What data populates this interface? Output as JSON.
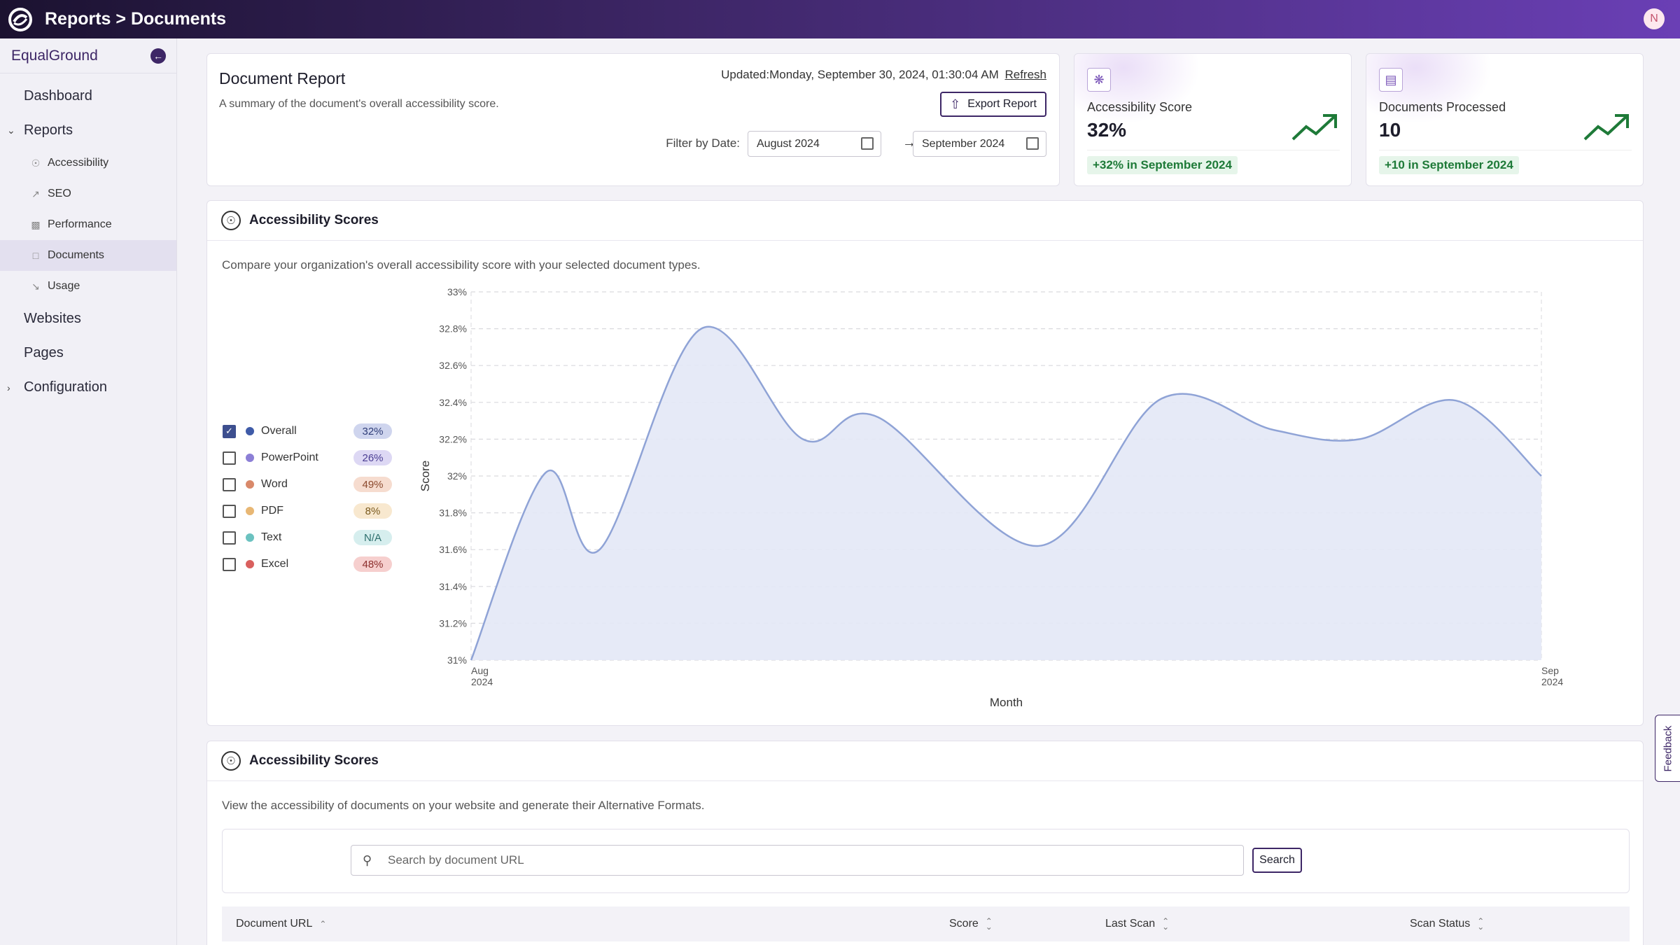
{
  "header": {
    "title": "Reports > Documents",
    "avatar_initial": "N"
  },
  "sidebar": {
    "brand": "EqualGround",
    "dashboard": "Dashboard",
    "reports": "Reports",
    "report_items": [
      "Accessibility",
      "SEO",
      "Performance",
      "Documents",
      "Usage"
    ],
    "active_item": "Documents",
    "websites": "Websites",
    "pages": "Pages",
    "configuration": "Configuration"
  },
  "document_report": {
    "title": "Document Report",
    "subtitle": "A summary of the document's overall accessibility score.",
    "updated_prefix": "Updated:",
    "updated_value": "Monday, September 30, 2024, 01:30:04 AM",
    "refresh_label": "Refresh",
    "export_label": "Export Report",
    "filter_label": "Filter by Date:",
    "date_from": "August 2024",
    "date_to": "September 2024"
  },
  "stats": {
    "accessibility": {
      "label": "Accessibility Score",
      "value": "32%",
      "badge": "+32% in September 2024"
    },
    "documents": {
      "label": "Documents Processed",
      "value": "10",
      "badge": "+10 in September 2024"
    }
  },
  "chart_section": {
    "title": "Accessibility Scores",
    "description": "Compare your organization's overall accessibility score with your selected document types.",
    "legend": [
      {
        "name": "Overall",
        "pct": "32%",
        "checked": true,
        "color": "#3f5ba8",
        "badge_bg": "#cfd5ee",
        "badge_fg": "#2f3d78"
      },
      {
        "name": "PowerPoint",
        "pct": "26%",
        "checked": false,
        "color": "#8c7fd6",
        "badge_bg": "#ddd8f4",
        "badge_fg": "#4a3d93"
      },
      {
        "name": "Word",
        "pct": "49%",
        "checked": false,
        "color": "#d9896a",
        "badge_bg": "#f6dccf",
        "badge_fg": "#8c4a2e"
      },
      {
        "name": "PDF",
        "pct": "8%",
        "checked": false,
        "color": "#e8b774",
        "badge_bg": "#f8e8cf",
        "badge_fg": "#7a5a1e"
      },
      {
        "name": "Text",
        "pct": "N/A",
        "checked": false,
        "color": "#6bc2c0",
        "badge_bg": "#d6eeee",
        "badge_fg": "#2e6f6d"
      },
      {
        "name": "Excel",
        "pct": "48%",
        "checked": false,
        "color": "#d9605e",
        "badge_bg": "#f6cfce",
        "badge_fg": "#8c2e2c"
      }
    ]
  },
  "chart_data": {
    "type": "area",
    "title": "",
    "xlabel": "Month",
    "ylabel": "Score",
    "x_ticks": [
      [
        "Aug",
        "2024"
      ],
      [
        "Sep",
        "2024"
      ]
    ],
    "y_ticks": [
      "31%",
      "31.2%",
      "31.4%",
      "31.6%",
      "31.8%",
      "32%",
      "32.2%",
      "32.4%",
      "32.6%",
      "32.8%",
      "33%"
    ],
    "ylim": [
      31,
      33
    ],
    "grid": true,
    "series": [
      {
        "name": "Overall",
        "color": "#8fa3d6",
        "fill": "#e3e8f6",
        "x": [
          0,
          0.07,
          0.12,
          0.215,
          0.31,
          0.38,
          0.53,
          0.645,
          0.75,
          0.83,
          0.92,
          1.0
        ],
        "values": [
          31.0,
          32.02,
          31.6,
          32.8,
          32.2,
          32.32,
          31.62,
          32.42,
          32.25,
          32.2,
          32.41,
          32.0
        ]
      }
    ]
  },
  "table_section": {
    "title": "Accessibility Scores",
    "description": "View the accessibility of documents on your website and generate their Alternative Formats.",
    "search_placeholder": "Search by document URL",
    "search_button": "Search",
    "columns": [
      "Document URL",
      "Score",
      "Last Scan",
      "Scan Status"
    ]
  },
  "feedback_label": "Feedback",
  "colors": {
    "brand": "#3d2666",
    "accent": "#6a3fb5",
    "positive": "#1e7a38"
  }
}
